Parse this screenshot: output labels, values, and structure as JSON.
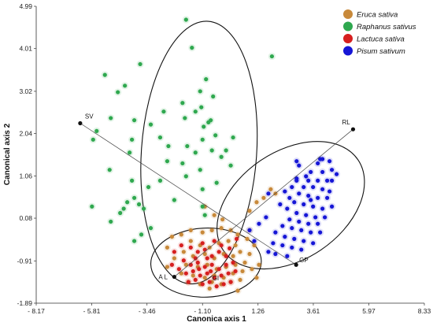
{
  "chart_data": {
    "type": "scatter",
    "xlabel": "Canonica axis 1",
    "ylabel": "Canonical axis 2",
    "xlim": [
      -8.17,
      8.33
    ],
    "ylim": [
      -1.89,
      4.99
    ],
    "x_ticks": [
      -8.17,
      -5.81,
      -3.46,
      -1.1,
      1.26,
      3.61,
      5.97,
      8.33
    ],
    "x_tick_labels": [
      "- 8.17",
      "- 5.81",
      "- 3.46",
      "- 1.10",
      "1.26",
      "3.61",
      "5.97",
      "8.33"
    ],
    "y_ticks": [
      -1.89,
      -0.91,
      0.08,
      1.06,
      2.04,
      3.02,
      4.01,
      4.99
    ],
    "y_tick_labels": [
      "-1.89",
      "-0.91",
      "0.08",
      "1.06",
      "2.04",
      "3.02",
      "4.01",
      "4.99"
    ],
    "legend_position": "top-right",
    "colors": {
      "eruca": "#c8893a",
      "raphanus": "#2fa84f",
      "lactuca": "#d61f1f",
      "pisum": "#1616d6"
    },
    "series": [
      {
        "name": "Eruca sativa",
        "color": "#c8893a",
        "points": [
          [
            -1.6,
            -0.45
          ],
          [
            -1.2,
            -0.55
          ],
          [
            -0.8,
            -0.6
          ],
          [
            -0.4,
            -0.5
          ],
          [
            0.0,
            -0.45
          ],
          [
            0.3,
            -0.55
          ],
          [
            -1.9,
            -0.7
          ],
          [
            -1.5,
            -0.8
          ],
          [
            -1.0,
            -0.75
          ],
          [
            -0.6,
            -0.85
          ],
          [
            -0.2,
            -0.75
          ],
          [
            0.2,
            -0.8
          ],
          [
            0.5,
            -0.7
          ],
          [
            -2.3,
            -0.85
          ],
          [
            -1.8,
            -1.0
          ],
          [
            -1.3,
            -1.05
          ],
          [
            -0.9,
            -1.0
          ],
          [
            -0.5,
            -1.1
          ],
          [
            -0.1,
            -1.05
          ],
          [
            0.3,
            -1.0
          ],
          [
            0.7,
            -0.95
          ],
          [
            -2.0,
            -1.2
          ],
          [
            -1.5,
            -1.25
          ],
          [
            -1.0,
            -1.3
          ],
          [
            -0.6,
            -1.25
          ],
          [
            -0.2,
            -1.3
          ],
          [
            0.2,
            -1.2
          ],
          [
            0.6,
            -1.15
          ],
          [
            1.0,
            -1.1
          ],
          [
            -1.7,
            -1.4
          ],
          [
            -1.2,
            -1.45
          ],
          [
            -0.7,
            -1.4
          ],
          [
            -0.3,
            -1.45
          ],
          [
            0.1,
            -1.4
          ],
          [
            0.5,
            -1.35
          ],
          [
            -2.6,
            -0.6
          ],
          [
            -2.4,
            -0.35
          ],
          [
            -2.0,
            -0.3
          ],
          [
            -1.6,
            -0.2
          ],
          [
            -1.1,
            -0.25
          ],
          [
            -0.7,
            -0.2
          ],
          [
            -0.3,
            -0.15
          ],
          [
            0.1,
            -0.2
          ],
          [
            0.4,
            -0.3
          ],
          [
            0.8,
            -0.4
          ],
          [
            0.9,
            0.25
          ],
          [
            1.2,
            0.45
          ],
          [
            1.5,
            0.55
          ],
          [
            1.8,
            0.75
          ],
          [
            2.0,
            0.65
          ],
          [
            0.9,
            -0.2
          ],
          [
            1.1,
            -0.55
          ],
          [
            1.3,
            -1.0
          ],
          [
            1.2,
            -1.3
          ],
          [
            -1.0,
            0.35
          ],
          [
            -0.6,
            0.15
          ],
          [
            -2.6,
            -1.05
          ],
          [
            -0.8,
            -1.55
          ],
          [
            0.4,
            -1.6
          ],
          [
            0.9,
            -0.75
          ],
          [
            -0.25,
            0.05
          ]
        ]
      },
      {
        "name": "Raphanus sativus",
        "color": "#2fa84f",
        "points": [
          [
            -1.8,
            4.68
          ],
          [
            -1.55,
            4.03
          ],
          [
            1.85,
            3.83
          ],
          [
            -3.75,
            3.65
          ],
          [
            -5.25,
            3.4
          ],
          [
            -0.95,
            3.3
          ],
          [
            -4.4,
            3.15
          ],
          [
            -4.7,
            3.0
          ],
          [
            -1.2,
            3.02
          ],
          [
            -0.65,
            2.9
          ],
          [
            -1.95,
            2.75
          ],
          [
            -1.15,
            2.65
          ],
          [
            -1.4,
            2.55
          ],
          [
            -2.75,
            2.55
          ],
          [
            -5.0,
            2.4
          ],
          [
            -4.0,
            2.35
          ],
          [
            -1.85,
            2.4
          ],
          [
            -0.85,
            2.3
          ],
          [
            -0.75,
            2.35
          ],
          [
            -1.05,
            2.2
          ],
          [
            -5.6,
            2.1
          ],
          [
            -3.3,
            2.25
          ],
          [
            -2.9,
            1.95
          ],
          [
            -1.1,
            1.9
          ],
          [
            -0.55,
            2.0
          ],
          [
            -5.75,
            1.9
          ],
          [
            -4.1,
            1.9
          ],
          [
            -2.55,
            1.75
          ],
          [
            -4.2,
            1.6
          ],
          [
            -1.75,
            1.75
          ],
          [
            -0.7,
            1.65
          ],
          [
            -1.4,
            1.6
          ],
          [
            -0.1,
            1.65
          ],
          [
            0.2,
            1.95
          ],
          [
            -2.6,
            1.4
          ],
          [
            -1.95,
            1.35
          ],
          [
            -0.3,
            1.5
          ],
          [
            0.1,
            1.3
          ],
          [
            -5.05,
            1.2
          ],
          [
            -1.8,
            1.05
          ],
          [
            -4.1,
            0.95
          ],
          [
            -3.4,
            0.8
          ],
          [
            -1.1,
            0.75
          ],
          [
            -4.0,
            0.55
          ],
          [
            -4.3,
            0.45
          ],
          [
            -3.8,
            0.4
          ],
          [
            -5.8,
            0.35
          ],
          [
            -4.45,
            0.3
          ],
          [
            -3.6,
            0.3
          ],
          [
            -4.6,
            0.2
          ],
          [
            -1.1,
            0.35
          ],
          [
            -1.0,
            0.15
          ],
          [
            -3.7,
            -0.3
          ],
          [
            -4.0,
            -0.45
          ],
          [
            -2.9,
            0.95
          ],
          [
            -1.2,
            1.2
          ],
          [
            -3.3,
            -0.15
          ],
          [
            -5.0,
            0.0
          ],
          [
            -0.5,
            0.9
          ],
          [
            -2.3,
            0.5
          ]
        ]
      },
      {
        "name": "Lactuca sativa",
        "color": "#d61f1f",
        "points": [
          [
            -1.6,
            -0.6
          ],
          [
            -1.3,
            -0.7
          ],
          [
            -1.0,
            -0.65
          ],
          [
            -0.7,
            -0.8
          ],
          [
            -0.4,
            -0.7
          ],
          [
            -0.1,
            -0.8
          ],
          [
            -1.9,
            -0.9
          ],
          [
            -1.6,
            -1.0
          ],
          [
            -1.3,
            -0.95
          ],
          [
            -1.0,
            -1.05
          ],
          [
            -0.7,
            -1.0
          ],
          [
            -0.4,
            -1.1
          ],
          [
            -0.1,
            -1.0
          ],
          [
            0.2,
            -0.95
          ],
          [
            -2.1,
            -1.1
          ],
          [
            -1.8,
            -1.2
          ],
          [
            -1.5,
            -1.15
          ],
          [
            -1.2,
            -1.25
          ],
          [
            -0.9,
            -1.2
          ],
          [
            -0.6,
            -1.3
          ],
          [
            -0.3,
            -1.25
          ],
          [
            0.0,
            -1.2
          ],
          [
            0.3,
            -1.15
          ],
          [
            -1.7,
            -1.4
          ],
          [
            -1.4,
            -1.35
          ],
          [
            -1.1,
            -1.45
          ],
          [
            -0.8,
            -1.4
          ],
          [
            -0.5,
            -1.5
          ],
          [
            -0.2,
            -1.45
          ],
          [
            0.1,
            -1.4
          ],
          [
            -2.3,
            -0.7
          ],
          [
            -2.0,
            -0.55
          ],
          [
            -1.1,
            -0.5
          ],
          [
            -0.6,
            -0.45
          ],
          [
            -0.9,
            -0.85
          ],
          [
            -1.4,
            -0.85
          ],
          [
            -2.4,
            -1.0
          ],
          [
            -0.3,
            -0.55
          ],
          [
            -1.25,
            -1.1
          ],
          [
            -0.75,
            -1.15
          ],
          [
            0.05,
            -0.62
          ],
          [
            0.35,
            -0.4
          ]
        ]
      },
      {
        "name": "Pisum sativum",
        "color": "#1616d6",
        "points": [
          [
            4.0,
            1.45
          ],
          [
            4.3,
            1.4
          ],
          [
            3.8,
            1.35
          ],
          [
            2.9,
            1.4
          ],
          [
            4.4,
            1.2
          ],
          [
            3.5,
            1.15
          ],
          [
            4.0,
            1.15
          ],
          [
            4.6,
            1.1
          ],
          [
            3.3,
            1.05
          ],
          [
            3.8,
            0.95
          ],
          [
            4.2,
            0.95
          ],
          [
            2.9,
            0.95
          ],
          [
            3.2,
            0.8
          ],
          [
            3.6,
            0.8
          ],
          [
            4.0,
            0.75
          ],
          [
            2.7,
            0.8
          ],
          [
            2.4,
            0.7
          ],
          [
            3.0,
            0.65
          ],
          [
            3.4,
            0.6
          ],
          [
            3.8,
            0.55
          ],
          [
            4.2,
            0.55
          ],
          [
            2.8,
            0.45
          ],
          [
            3.2,
            0.4
          ],
          [
            3.6,
            0.35
          ],
          [
            4.0,
            0.3
          ],
          [
            2.5,
            0.3
          ],
          [
            2.9,
            0.2
          ],
          [
            3.3,
            0.15
          ],
          [
            3.7,
            0.1
          ],
          [
            4.1,
            0.1
          ],
          [
            2.6,
            0.05
          ],
          [
            3.0,
            0.0
          ],
          [
            3.4,
            -0.05
          ],
          [
            3.8,
            -0.05
          ],
          [
            2.3,
            -0.1
          ],
          [
            2.7,
            -0.15
          ],
          [
            3.1,
            -0.2
          ],
          [
            3.5,
            -0.25
          ],
          [
            3.9,
            -0.25
          ],
          [
            2.0,
            -0.25
          ],
          [
            2.4,
            -0.35
          ],
          [
            2.8,
            -0.4
          ],
          [
            3.2,
            -0.45
          ],
          [
            3.6,
            -0.5
          ],
          [
            1.9,
            -0.5
          ],
          [
            2.3,
            -0.55
          ],
          [
            2.7,
            -0.6
          ],
          [
            3.1,
            -0.65
          ],
          [
            2.0,
            -0.75
          ],
          [
            2.5,
            -0.8
          ],
          [
            1.7,
            -0.7
          ],
          [
            4.4,
            0.35
          ],
          [
            4.3,
            0.7
          ],
          [
            1.6,
            0.1
          ],
          [
            1.3,
            -0.05
          ],
          [
            0.9,
            -0.2
          ],
          [
            3.0,
            1.3
          ],
          [
            1.7,
            0.65
          ],
          [
            2.9,
            1.0
          ],
          [
            3.4,
            0.95
          ],
          [
            2.6,
            0.55
          ],
          [
            3.5,
            0.5
          ],
          [
            2.2,
            0.4
          ],
          [
            4.4,
            0.95
          ],
          [
            3.9,
            1.45
          ],
          [
            1.1,
            -0.45
          ]
        ]
      }
    ],
    "ellipses": [
      {
        "series": "Raphanus sativus",
        "center": [
          -1.25,
          1.6
        ],
        "rx": 2.45,
        "ry": 3.05,
        "rotation_deg": 4
      },
      {
        "series": "Pisum sativum",
        "center": [
          2.65,
          0.38
        ],
        "rx": 3.45,
        "ry": 1.25,
        "rotation_deg": -34
      },
      {
        "series": "Lactuca sativa",
        "center": [
          -0.95,
          -0.95
        ],
        "rx": 2.35,
        "ry": 0.8,
        "rotation_deg": -2
      }
    ],
    "vectors": [
      {
        "label": "SV",
        "from": [
          -6.3,
          2.28
        ],
        "to": [
          2.88,
          -1.0
        ]
      },
      {
        "label": "RL",
        "from": [
          -2.3,
          -1.28
        ],
        "to": [
          5.3,
          2.14
        ]
      },
      {
        "label": "GP",
        "label_pos": [
          2.88,
          -1.0
        ]
      },
      {
        "label": "A L",
        "label_pos": [
          -2.3,
          -1.28
        ]
      },
      {
        "label": "GI",
        "label_pos": [
          -0.55,
          -1.31
        ]
      }
    ]
  }
}
